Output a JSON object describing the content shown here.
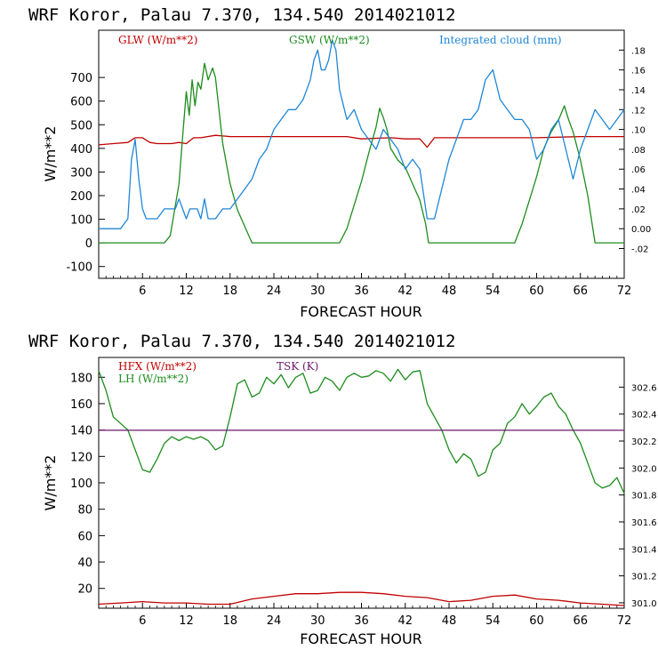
{
  "chart_data": [
    {
      "type": "line",
      "title": "WRF   Koror, Palau    7.370, 134.540  2014021012",
      "xlabel": "FORECAST HOUR",
      "ylabel": "W/m**2",
      "xlim": [
        0,
        72
      ],
      "ylim": [
        -150,
        900
      ],
      "xticks": [
        "6",
        "12",
        "18",
        "24",
        "30",
        "36",
        "42",
        "48",
        "54",
        "60",
        "66",
        "72"
      ],
      "yticks": [
        "700",
        "600",
        "500",
        "400",
        "300",
        "200",
        "100",
        "0",
        "-100"
      ],
      "y2lim": [
        -0.05,
        0.2
      ],
      "y2ticks": [
        ".18",
        ".16",
        ".14",
        ".12",
        ".10",
        ".08",
        ".06",
        ".04",
        ".02",
        "0.00",
        "-.02"
      ],
      "legend_placement": "top",
      "colors": {
        "GLW": "#c00000",
        "GSW": "#1e8c1e",
        "cloud": "#1f86d6",
        "axis": "#000000"
      },
      "series": [
        {
          "name": "GLW (W/m**2)",
          "axis": "left",
          "x": [
            0,
            2,
            4,
            5,
            6,
            7,
            8,
            10,
            11,
            12,
            13,
            14,
            16,
            18,
            20,
            24,
            30,
            34,
            36,
            40,
            42,
            44,
            45,
            46,
            48,
            56,
            60,
            66,
            72
          ],
          "values": [
            415,
            420,
            425,
            445,
            445,
            425,
            420,
            420,
            425,
            420,
            445,
            445,
            455,
            450,
            450,
            450,
            450,
            450,
            440,
            445,
            440,
            440,
            405,
            445,
            445,
            445,
            445,
            450,
            450
          ]
        },
        {
          "name": "GSW (W/m**2)",
          "axis": "left",
          "x": [
            0,
            9,
            9.8,
            10.3,
            11,
            11.5,
            12,
            12.4,
            12.8,
            13.2,
            13.6,
            14,
            14.5,
            15,
            15.6,
            16,
            17,
            18,
            19,
            20,
            21,
            33,
            34,
            36,
            37,
            38,
            38.5,
            39,
            39.5,
            40,
            41,
            42,
            43,
            44,
            44.8,
            45.2,
            57,
            58,
            60,
            61,
            62,
            63,
            63.8,
            64.4,
            65,
            66,
            67,
            68,
            72
          ],
          "values": [
            0,
            0,
            30,
            120,
            250,
            450,
            640,
            540,
            690,
            580,
            680,
            650,
            760,
            690,
            740,
            700,
            420,
            250,
            140,
            70,
            0,
            0,
            60,
            260,
            380,
            490,
            570,
            530,
            480,
            400,
            350,
            320,
            250,
            180,
            80,
            0,
            0,
            80,
            280,
            400,
            470,
            520,
            580,
            520,
            470,
            350,
            200,
            0,
            0
          ]
        },
        {
          "name": "Integrated cloud (mm)",
          "axis": "right",
          "x": [
            0,
            3,
            4,
            4.5,
            5,
            5.5,
            6,
            6.5,
            7,
            7.5,
            8,
            9,
            10,
            10.5,
            11,
            11.5,
            12,
            12.5,
            13,
            13.5,
            14,
            14.5,
            15,
            16,
            17,
            18,
            19,
            20,
            21,
            22,
            23,
            24,
            25,
            26,
            27,
            28,
            29,
            29.5,
            30,
            30.5,
            31,
            31.5,
            32,
            32.5,
            33,
            34,
            35,
            36,
            37,
            38,
            39,
            40,
            41,
            42,
            43,
            44,
            45,
            46,
            47,
            48,
            49,
            50,
            51,
            52,
            53,
            54,
            55,
            56,
            57,
            58,
            59,
            60,
            61,
            62,
            63,
            64,
            65,
            66,
            67,
            68,
            69,
            70,
            71,
            72
          ],
          "values": [
            0,
            0,
            0.01,
            0.07,
            0.09,
            0.05,
            0.02,
            0.01,
            0.01,
            0.01,
            0.01,
            0.02,
            0.02,
            0.02,
            0.03,
            0.02,
            0.01,
            0.02,
            0.02,
            0.02,
            0.01,
            0.03,
            0.01,
            0.01,
            0.02,
            0.02,
            0.03,
            0.04,
            0.05,
            0.07,
            0.08,
            0.1,
            0.11,
            0.12,
            0.12,
            0.13,
            0.15,
            0.17,
            0.18,
            0.16,
            0.16,
            0.17,
            0.19,
            0.18,
            0.14,
            0.11,
            0.12,
            0.1,
            0.09,
            0.08,
            0.1,
            0.09,
            0.08,
            0.06,
            0.07,
            0.06,
            0.01,
            0.01,
            0.04,
            0.07,
            0.09,
            0.11,
            0.11,
            0.12,
            0.15,
            0.16,
            0.13,
            0.12,
            0.11,
            0.11,
            0.1,
            0.07,
            0.08,
            0.1,
            0.11,
            0.08,
            0.05,
            0.08,
            0.1,
            0.12,
            0.11,
            0.1,
            0.11,
            0.12
          ]
        }
      ]
    },
    {
      "type": "line",
      "title": "WRF   Koror, Palau    7.370, 134.540  2014021012",
      "xlabel": "FORECAST HOUR",
      "ylabel": "W/m**2",
      "xlim": [
        0,
        72
      ],
      "ylim": [
        5,
        195
      ],
      "xticks": [
        "6",
        "12",
        "18",
        "24",
        "30",
        "36",
        "42",
        "48",
        "54",
        "60",
        "66",
        "72"
      ],
      "yticks": [
        "180",
        "160",
        "140",
        "120",
        "100",
        "80",
        "60",
        "40",
        "20"
      ],
      "y2lim": [
        300.96,
        302.82
      ],
      "y2ticks": [
        "302.6",
        "302.4",
        "302.2",
        "302.0",
        "301.8",
        "301.6",
        "301.4",
        "301.2",
        "301.0"
      ],
      "legend_placement": "top-left",
      "colors": {
        "HFX": "#c00000",
        "LH": "#1e8c1e",
        "TSK": "#6a1a6a",
        "axis": "#000000"
      },
      "series": [
        {
          "name": "HFX (W/m**2)",
          "axis": "left",
          "x": [
            0,
            3,
            6,
            9,
            12,
            15,
            18,
            21,
            24,
            27,
            30,
            33,
            36,
            39,
            42,
            45,
            48,
            51,
            54,
            57,
            60,
            63,
            66,
            69,
            72
          ],
          "values": [
            8,
            9,
            10,
            9,
            9,
            8,
            8,
            12,
            14,
            16,
            16,
            17,
            17,
            16,
            14,
            13,
            10,
            11,
            14,
            15,
            12,
            11,
            9,
            8,
            7
          ]
        },
        {
          "name": "LH (W/m**2)",
          "axis": "left",
          "x": [
            0,
            1,
            2,
            3,
            4,
            5,
            6,
            7,
            8,
            9,
            10,
            11,
            12,
            13,
            14,
            15,
            16,
            17,
            18,
            19,
            20,
            21,
            22,
            23,
            24,
            25,
            26,
            27,
            28,
            29,
            30,
            31,
            32,
            33,
            34,
            35,
            36,
            37,
            38,
            39,
            40,
            41,
            42,
            43,
            44,
            45,
            46,
            47,
            48,
            49,
            50,
            51,
            52,
            53,
            54,
            55,
            56,
            57,
            58,
            59,
            60,
            61,
            62,
            63,
            64,
            65,
            66,
            67,
            68,
            69,
            70,
            71,
            72
          ],
          "values": [
            185,
            170,
            150,
            145,
            140,
            125,
            110,
            108,
            118,
            130,
            135,
            132,
            135,
            133,
            135,
            132,
            125,
            128,
            150,
            175,
            178,
            165,
            168,
            180,
            175,
            182,
            172,
            180,
            183,
            168,
            170,
            180,
            177,
            170,
            180,
            183,
            180,
            181,
            185,
            183,
            177,
            186,
            178,
            184,
            185,
            160,
            150,
            140,
            125,
            115,
            122,
            118,
            105,
            108,
            125,
            130,
            145,
            150,
            160,
            152,
            158,
            165,
            168,
            158,
            152,
            140,
            130,
            115,
            100,
            96,
            98,
            104,
            92
          ]
        },
        {
          "name": "TSK (K)",
          "axis": "right",
          "x": [
            0,
            72
          ],
          "values": [
            302.28,
            302.28
          ]
        }
      ]
    }
  ],
  "legends": {
    "top": {
      "glw": "GLW (W/m**2)",
      "gsw": "GSW (W/m**2)",
      "cloud": "Integrated cloud (mm)"
    },
    "bottom": {
      "hfx": "HFX (W/m**2)",
      "lh": "LH  (W/m**2)",
      "tsk": "TSK (K)"
    }
  }
}
